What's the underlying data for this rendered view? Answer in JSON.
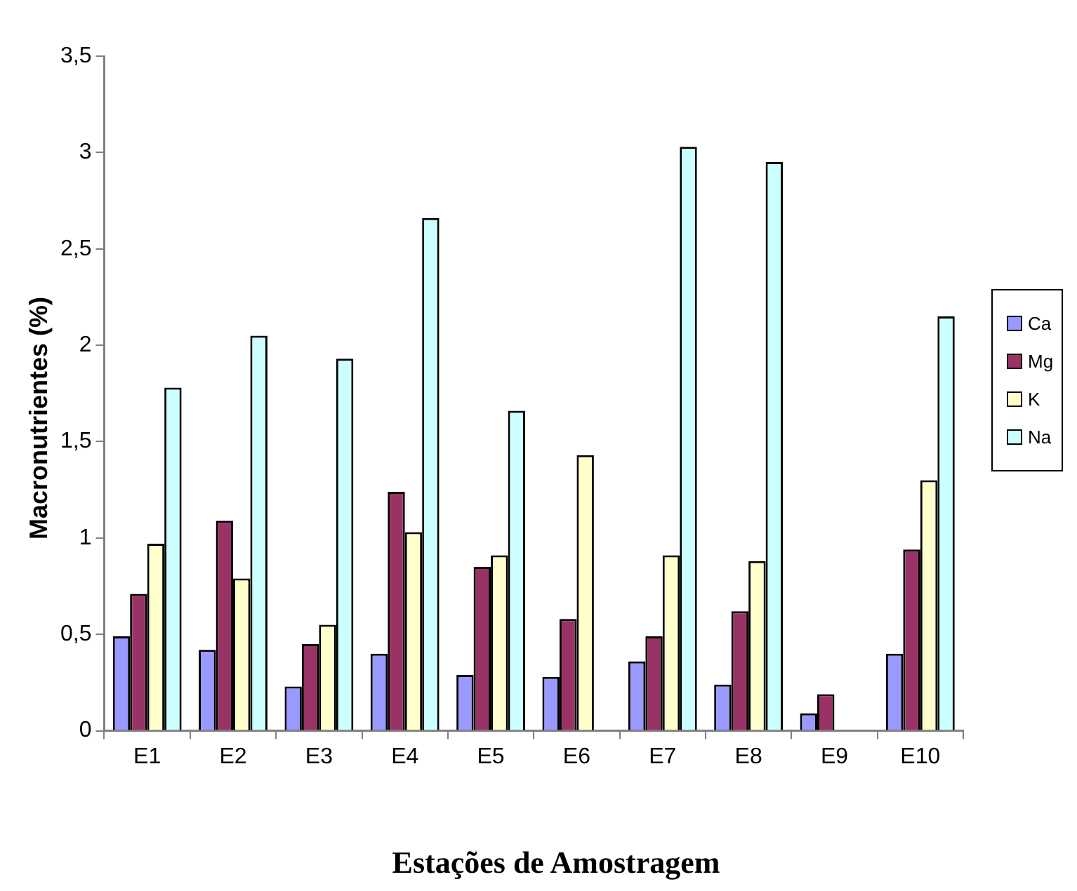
{
  "chart_data": {
    "type": "bar",
    "xlabel": "Estações de Amostragem",
    "ylabel": "Macronutrientes (%)",
    "categories": [
      "E1",
      "E2",
      "E3",
      "E4",
      "E5",
      "E6",
      "E7",
      "E8",
      "E9",
      "E10"
    ],
    "series": [
      {
        "name": "Ca",
        "color": "#9999ff",
        "values": [
          0.49,
          0.42,
          0.23,
          0.4,
          0.29,
          0.28,
          0.36,
          0.24,
          0.09,
          0.4
        ]
      },
      {
        "name": "Mg",
        "color": "#993366",
        "values": [
          0.71,
          1.09,
          0.45,
          1.24,
          0.85,
          0.58,
          0.49,
          0.62,
          0.19,
          0.94
        ]
      },
      {
        "name": "K",
        "color": "#ffffcc",
        "values": [
          0.97,
          0.79,
          0.55,
          1.03,
          0.91,
          1.43,
          0.91,
          0.88,
          null,
          1.3
        ]
      },
      {
        "name": "Na",
        "color": "#ccffff",
        "values": [
          1.78,
          2.05,
          1.93,
          2.66,
          1.66,
          null,
          3.03,
          2.95,
          null,
          2.15
        ]
      }
    ],
    "ylim": [
      0,
      3.5
    ],
    "yticks": [
      0,
      {
        "value": 0.5,
        "label": "0,5"
      },
      1,
      {
        "value": 1.5,
        "label": "1,5"
      },
      2,
      {
        "value": 2.5,
        "label": "2,5"
      },
      3,
      {
        "value": 3.5,
        "label": "3,5"
      }
    ],
    "grid": false,
    "legend": "right"
  }
}
